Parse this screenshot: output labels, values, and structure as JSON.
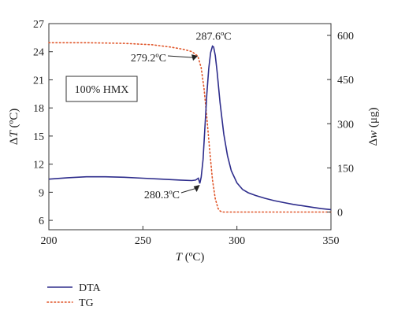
{
  "chart_data": {
    "type": "line",
    "xlabel": {
      "italic": "T",
      "rest": " (ºC)"
    },
    "ylabel_left": {
      "prefix": "Δ",
      "italic": "T",
      "rest": " (ºC)"
    },
    "ylabel_right": {
      "prefix": "Δ",
      "italic": "w",
      "rest": " (μg)"
    },
    "xlim": [
      200,
      350
    ],
    "ylim_left": [
      5,
      27
    ],
    "ylim_right": [
      -60,
      640
    ],
    "x_ticks": [
      "200",
      "250",
      "300",
      "350"
    ],
    "y_ticks_left": [
      "6",
      "9",
      "12",
      "15",
      "18",
      "21",
      "24",
      "27"
    ],
    "y_ticks_right": [
      "0",
      "150",
      "300",
      "450",
      "600"
    ],
    "grid": false,
    "legend_position": "bottom-left",
    "colors": {
      "DTA": "#2e2d8c",
      "TG": "#e0562a"
    },
    "sample_label": "100% HMX",
    "series": [
      {
        "name": "DTA",
        "axis": "left",
        "style": "solid",
        "x": [
          200,
          210,
          220,
          230,
          240,
          250,
          260,
          270,
          276,
          278,
          279.5,
          280.3,
          281,
          282,
          283,
          284,
          285,
          286,
          287,
          287.6,
          288.5,
          289.5,
          291,
          293,
          295,
          297,
          300,
          303,
          306,
          310,
          315,
          320,
          325,
          330,
          335,
          340,
          345,
          350
        ],
        "y": [
          10.4,
          10.55,
          10.65,
          10.65,
          10.6,
          10.5,
          10.4,
          10.3,
          10.25,
          10.3,
          10.5,
          9.95,
          10.6,
          12.5,
          16.0,
          19.5,
          22.2,
          23.9,
          24.6,
          24.5,
          23.6,
          21.8,
          18.6,
          15.2,
          12.9,
          11.3,
          10.0,
          9.3,
          8.95,
          8.65,
          8.35,
          8.1,
          7.9,
          7.7,
          7.55,
          7.4,
          7.25,
          7.15
        ]
      },
      {
        "name": "TG",
        "axis": "right",
        "style": "dotted",
        "x": [
          200,
          220,
          240,
          255,
          265,
          272,
          276,
          279.2,
          281,
          282.5,
          284,
          285.5,
          287,
          288.5,
          290,
          291,
          292,
          295,
          300,
          350
        ],
        "y": [
          575,
          575,
          573,
          568,
          560,
          552,
          545,
          530,
          490,
          420,
          320,
          210,
          110,
          45,
          12,
          4,
          0,
          0,
          0,
          0
        ]
      }
    ],
    "annotations": [
      {
        "text": "287.6ºC",
        "x": 287.6,
        "y": 24.6
      },
      {
        "text": "279.2ºC",
        "x": 279.2,
        "y": 24.2
      },
      {
        "text": "280.3ºC",
        "x": 280.3,
        "y": 9.95
      }
    ]
  }
}
